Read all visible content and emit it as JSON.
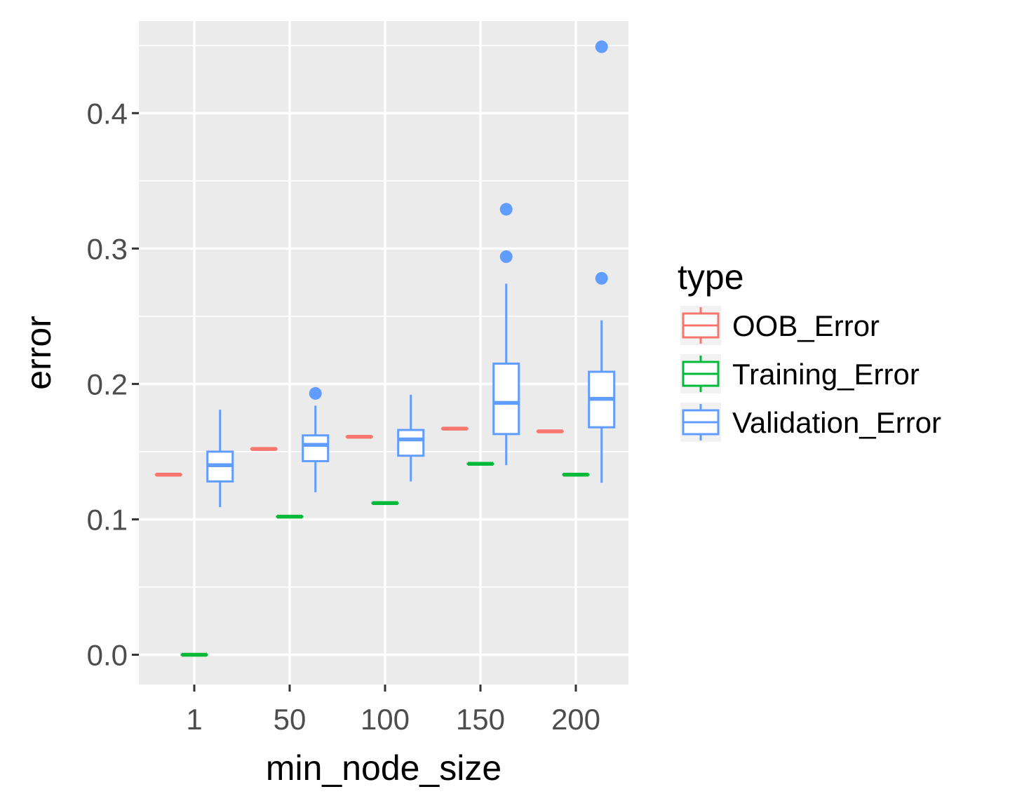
{
  "chart_data": {
    "type": "boxplot",
    "xlabel": "min_node_size",
    "ylabel": "error",
    "categories": [
      "1",
      "50",
      "100",
      "150",
      "200"
    ],
    "yticks": [
      "0.0",
      "0.1",
      "0.2",
      "0.3",
      "0.4"
    ],
    "ylim": [
      -0.022,
      0.468
    ],
    "grid": true,
    "background": "#ebebeb",
    "legend": {
      "title": "type",
      "position": "right",
      "entries": [
        "OOB_Error",
        "Training_Error",
        "Validation_Error"
      ]
    },
    "series": [
      {
        "name": "OOB_Error",
        "color": "#f8766d",
        "boxes": [
          {
            "category": "1",
            "min": 0.133,
            "q1": 0.133,
            "median": 0.133,
            "q3": 0.133,
            "max": 0.133,
            "outliers": []
          },
          {
            "category": "50",
            "min": 0.152,
            "q1": 0.152,
            "median": 0.152,
            "q3": 0.152,
            "max": 0.152,
            "outliers": []
          },
          {
            "category": "100",
            "min": 0.161,
            "q1": 0.161,
            "median": 0.161,
            "q3": 0.161,
            "max": 0.161,
            "outliers": []
          },
          {
            "category": "150",
            "min": 0.167,
            "q1": 0.167,
            "median": 0.167,
            "q3": 0.167,
            "max": 0.167,
            "outliers": []
          },
          {
            "category": "200",
            "min": 0.165,
            "q1": 0.165,
            "median": 0.165,
            "q3": 0.165,
            "max": 0.165,
            "outliers": []
          }
        ]
      },
      {
        "name": "Training_Error",
        "color": "#00ba38",
        "boxes": [
          {
            "category": "1",
            "min": 0.0,
            "q1": 0.0,
            "median": 0.0,
            "q3": 0.0,
            "max": 0.0,
            "outliers": []
          },
          {
            "category": "50",
            "min": 0.102,
            "q1": 0.102,
            "median": 0.102,
            "q3": 0.102,
            "max": 0.102,
            "outliers": []
          },
          {
            "category": "100",
            "min": 0.112,
            "q1": 0.112,
            "median": 0.112,
            "q3": 0.112,
            "max": 0.112,
            "outliers": []
          },
          {
            "category": "150",
            "min": 0.141,
            "q1": 0.141,
            "median": 0.141,
            "q3": 0.141,
            "max": 0.141,
            "outliers": []
          },
          {
            "category": "200",
            "min": 0.133,
            "q1": 0.133,
            "median": 0.133,
            "q3": 0.133,
            "max": 0.133,
            "outliers": []
          }
        ]
      },
      {
        "name": "Validation_Error",
        "color": "#619cff",
        "boxes": [
          {
            "category": "1",
            "min": 0.109,
            "q1": 0.128,
            "median": 0.14,
            "q3": 0.15,
            "max": 0.181,
            "outliers": []
          },
          {
            "category": "50",
            "min": 0.12,
            "q1": 0.143,
            "median": 0.155,
            "q3": 0.162,
            "max": 0.184,
            "outliers": [
              0.193
            ]
          },
          {
            "category": "100",
            "min": 0.128,
            "q1": 0.147,
            "median": 0.159,
            "q3": 0.166,
            "max": 0.192,
            "outliers": []
          },
          {
            "category": "150",
            "min": 0.14,
            "q1": 0.163,
            "median": 0.186,
            "q3": 0.215,
            "max": 0.274,
            "outliers": [
              0.294,
              0.329
            ]
          },
          {
            "category": "200",
            "min": 0.127,
            "q1": 0.168,
            "median": 0.189,
            "q3": 0.209,
            "max": 0.247,
            "outliers": [
              0.278,
              0.449
            ]
          }
        ]
      }
    ]
  }
}
